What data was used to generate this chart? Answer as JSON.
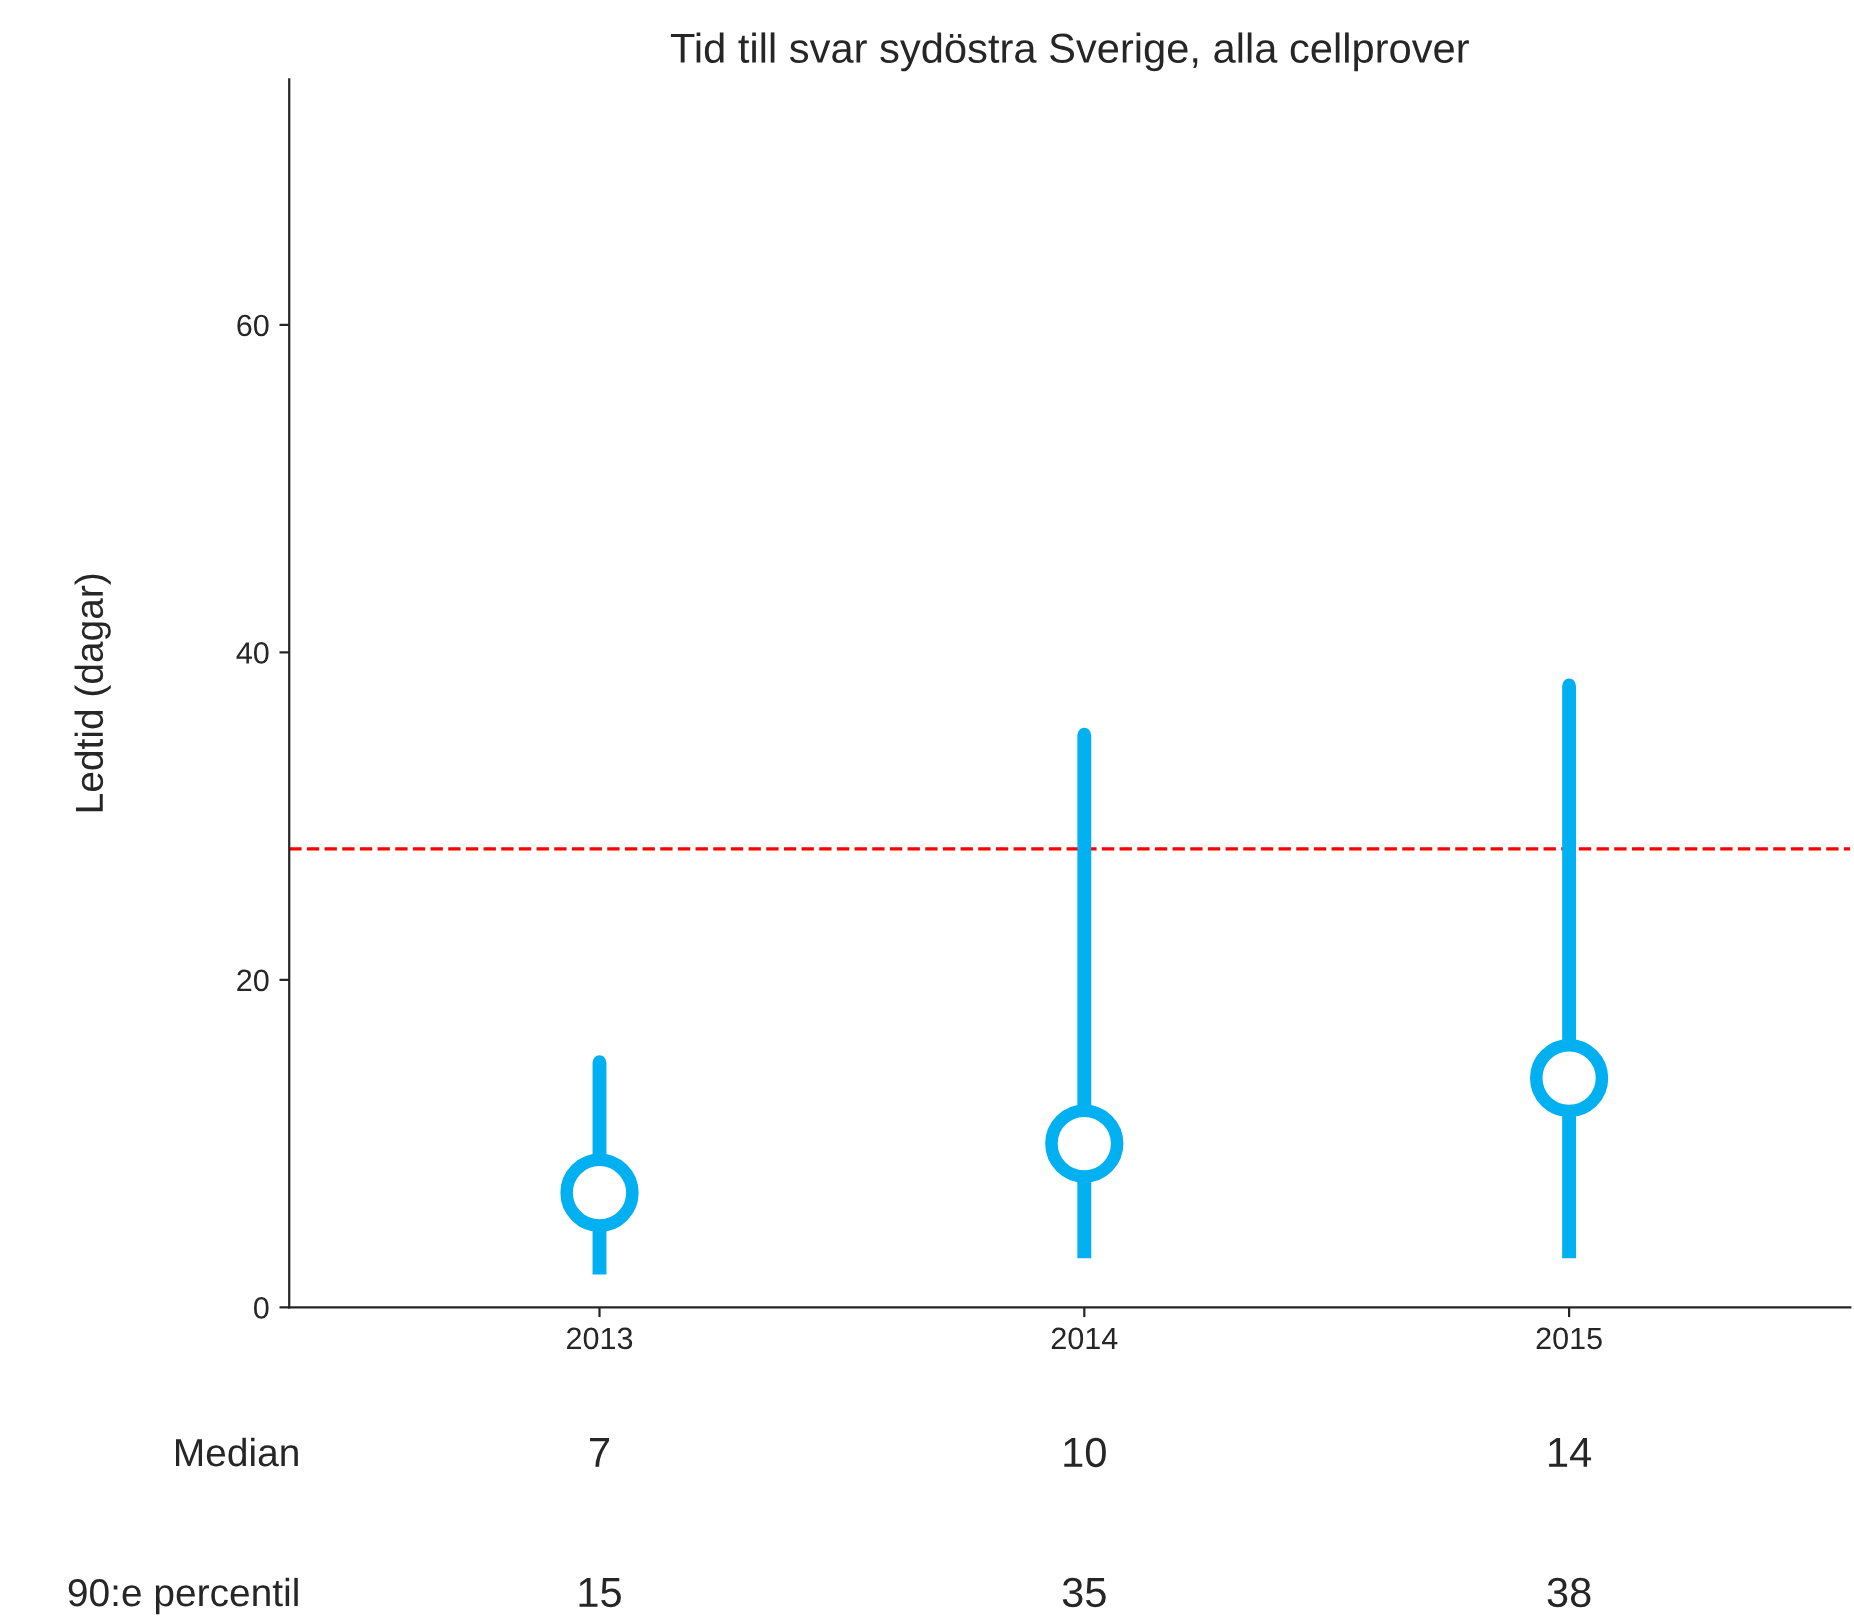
{
  "chart_data": {
    "type": "scatter",
    "title": "Tid till svar sydöstra Sverige, alla cellprover",
    "ylabel": "Ledtid (dagar)",
    "categories": [
      "2013",
      "2014",
      "2015"
    ],
    "series": [
      {
        "color": "#00b0f0",
        "values": [
          7,
          10,
          14
        ],
        "errors": [
          [
            2,
            15
          ],
          [
            3,
            35
          ],
          [
            3,
            38
          ]
        ],
        "marker": "circle"
      },
      {
        "color": "#00b0f0",
        "values": [
          15,
          35,
          38
        ],
        "marker": "circle"
      }
    ],
    "ylim": [
      0,
      75
    ],
    "yticks": [
      0,
      20,
      40,
      60
    ],
    "ref_lines": [
      {
        "axis": "y",
        "value": 28,
        "color": "#ff0000",
        "line_style": "dashed"
      }
    ],
    "data_labels": true,
    "annotations": [
      "Median",
      "90:e percentil"
    ],
    "grid": false,
    "legend": false
  }
}
